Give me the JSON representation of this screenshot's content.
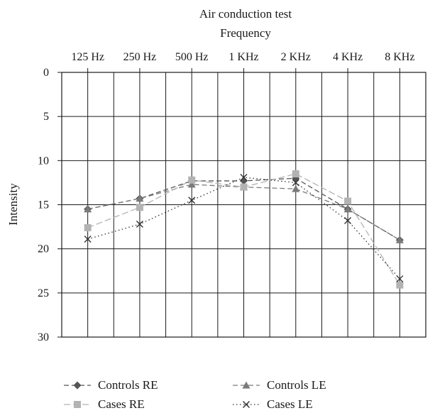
{
  "chart_data": {
    "type": "line",
    "title": "Air conduction test",
    "xlabel": "Frequency",
    "ylabel": "Intensity",
    "categories": [
      "125 Hz",
      "250 Hz",
      "500 Hz",
      "1 KHz",
      "2 KHz",
      "4 KHz",
      "8 KHz"
    ],
    "ylim": [
      0,
      30
    ],
    "y_inverted": true,
    "y_ticks": [
      0,
      5,
      10,
      15,
      20,
      25,
      30
    ],
    "x_axis_position": "top",
    "grid": true,
    "legend_position": "bottom",
    "series": [
      {
        "name": "Controls RE",
        "values": [
          15.5,
          14.3,
          12.3,
          12.3,
          12.0,
          15.5,
          19.0
        ],
        "color": "#555555",
        "marker": "diamond",
        "dash": "dash"
      },
      {
        "name": "Controls LE",
        "values": [
          15.5,
          14.3,
          12.7,
          13.0,
          13.2,
          15.5,
          19.0
        ],
        "color": "#7a7a7a",
        "marker": "triangle",
        "dash": "dash"
      },
      {
        "name": "Cases RE",
        "values": [
          17.6,
          15.3,
          12.2,
          13.0,
          11.5,
          14.6,
          24.1
        ],
        "color": "#b3b3b3",
        "marker": "square",
        "dash": "longdash"
      },
      {
        "name": "Cases LE",
        "values": [
          18.9,
          17.2,
          14.5,
          11.9,
          12.5,
          16.8,
          23.4
        ],
        "color": "#333333",
        "marker": "x",
        "dash": "dot"
      }
    ]
  }
}
